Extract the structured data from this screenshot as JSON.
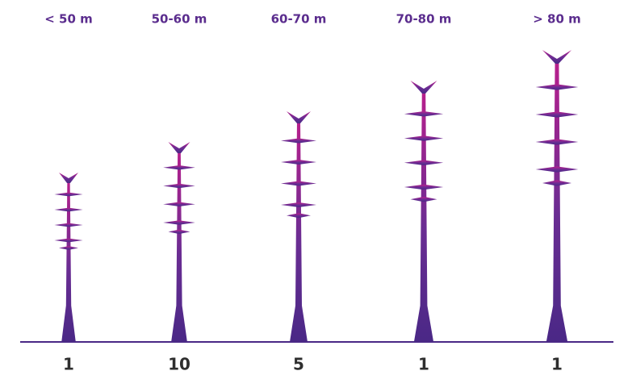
{
  "chart_data": {
    "type": "pictogram",
    "categories": [
      "< 50 m",
      "50-60 m",
      "60-70 m",
      "70-80 m",
      "> 80 m"
    ],
    "values": [
      1,
      10,
      5,
      1,
      1
    ]
  }
}
